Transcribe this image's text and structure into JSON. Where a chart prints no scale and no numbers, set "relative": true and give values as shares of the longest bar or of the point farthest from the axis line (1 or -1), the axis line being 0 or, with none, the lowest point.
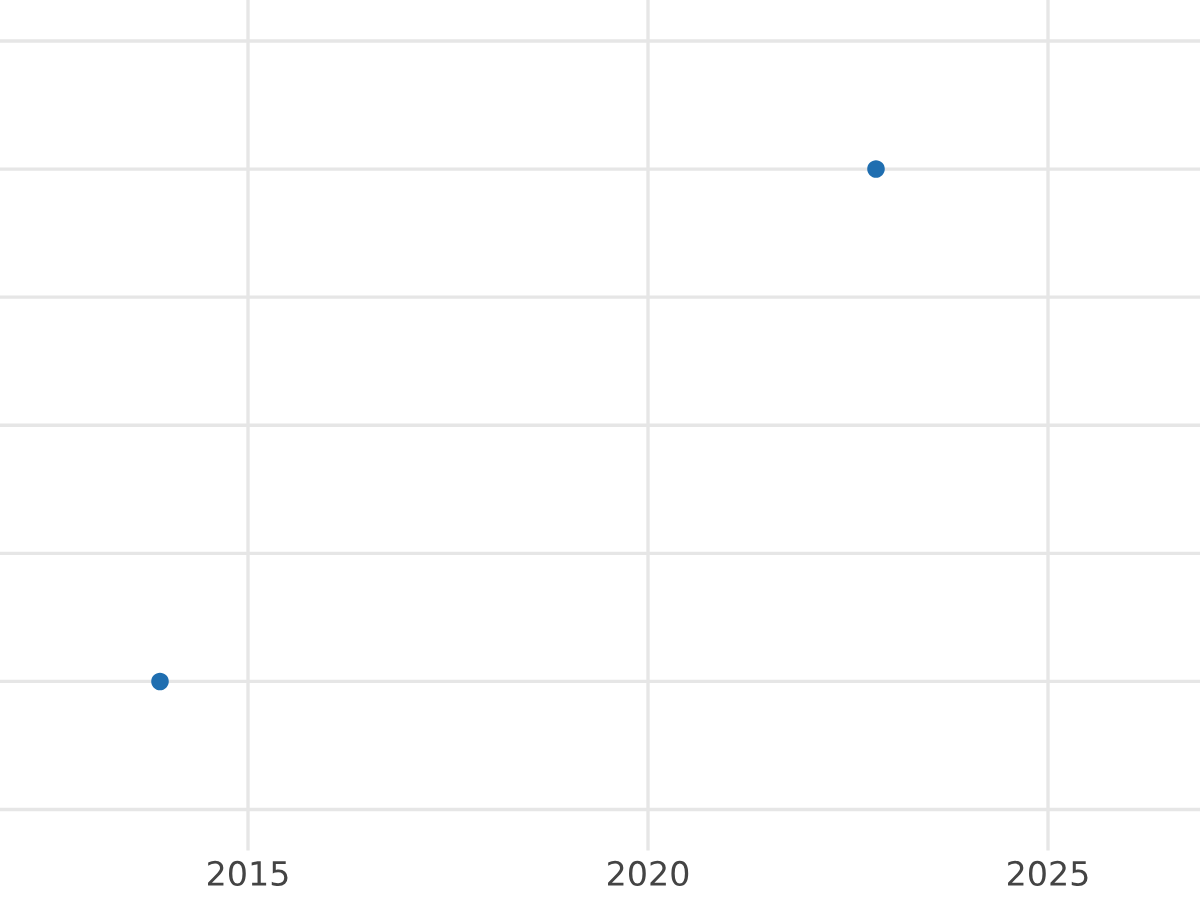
{
  "chart_data": {
    "type": "scatter",
    "relative": true,
    "x": [
      2013.9,
      2022.85
    ],
    "series": [
      {
        "color": "#1f6eb0",
        "values": [
          0,
          1
        ]
      }
    ],
    "xlim": [
      2011.9,
      2026.9
    ],
    "xticks": [
      2015,
      2020,
      2025
    ],
    "tick_labels": "x",
    "grid": true,
    "marker": "circle"
  }
}
